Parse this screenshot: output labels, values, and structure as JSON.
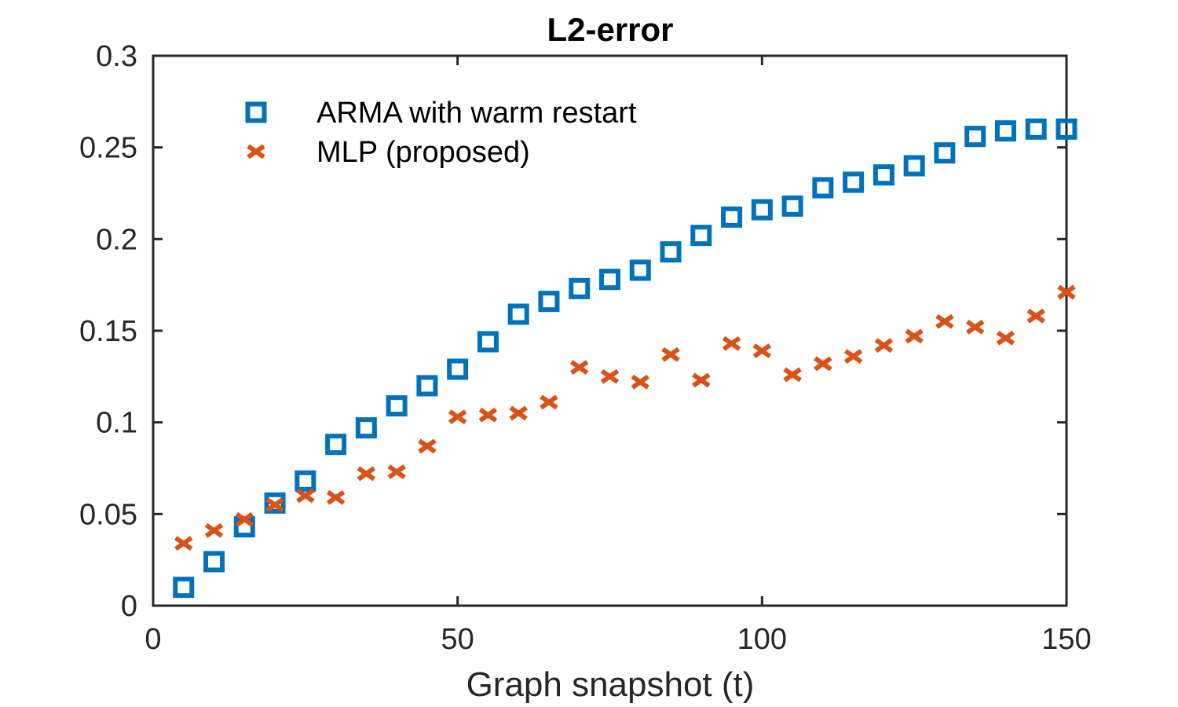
{
  "chart_data": {
    "type": "scatter",
    "title": "L2-error",
    "xlabel": "Graph snapshot (t)",
    "ylabel": "",
    "xlim": [
      0,
      150
    ],
    "ylim": [
      0,
      0.3
    ],
    "xticks": [
      0,
      50,
      100,
      150
    ],
    "xtick_labels": [
      "0",
      "50",
      "100",
      "150"
    ],
    "yticks": [
      0,
      0.05,
      0.1,
      0.15,
      0.2,
      0.25,
      0.3
    ],
    "ytick_labels": [
      "0",
      "0.05",
      "0.1",
      "0.15",
      "0.2",
      "0.25",
      "0.3"
    ],
    "grid": false,
    "legend_position": "top-left",
    "x": [
      5,
      10,
      15,
      20,
      25,
      30,
      35,
      40,
      45,
      50,
      55,
      60,
      65,
      70,
      75,
      80,
      85,
      90,
      95,
      100,
      105,
      110,
      115,
      120,
      125,
      130,
      135,
      140,
      145,
      150
    ],
    "series": [
      {
        "name": "ARMA with warm restart",
        "marker": "square",
        "color": "#0072BD",
        "values": [
          0.01,
          0.024,
          0.043,
          0.056,
          0.068,
          0.088,
          0.097,
          0.109,
          0.12,
          0.129,
          0.144,
          0.159,
          0.166,
          0.173,
          0.178,
          0.183,
          0.193,
          0.202,
          0.212,
          0.216,
          0.218,
          0.228,
          0.231,
          0.235,
          0.24,
          0.247,
          0.256,
          0.259,
          0.26,
          0.26
        ]
      },
      {
        "name": "MLP (proposed)",
        "marker": "x",
        "color": "#D95319",
        "values": [
          0.034,
          0.041,
          0.047,
          0.055,
          0.06,
          0.059,
          0.072,
          0.073,
          0.087,
          0.103,
          0.104,
          0.105,
          0.111,
          0.13,
          0.125,
          0.122,
          0.137,
          0.123,
          0.143,
          0.139,
          0.126,
          0.132,
          0.136,
          0.142,
          0.147,
          0.155,
          0.152,
          0.146,
          0.158,
          0.171
        ]
      }
    ]
  }
}
